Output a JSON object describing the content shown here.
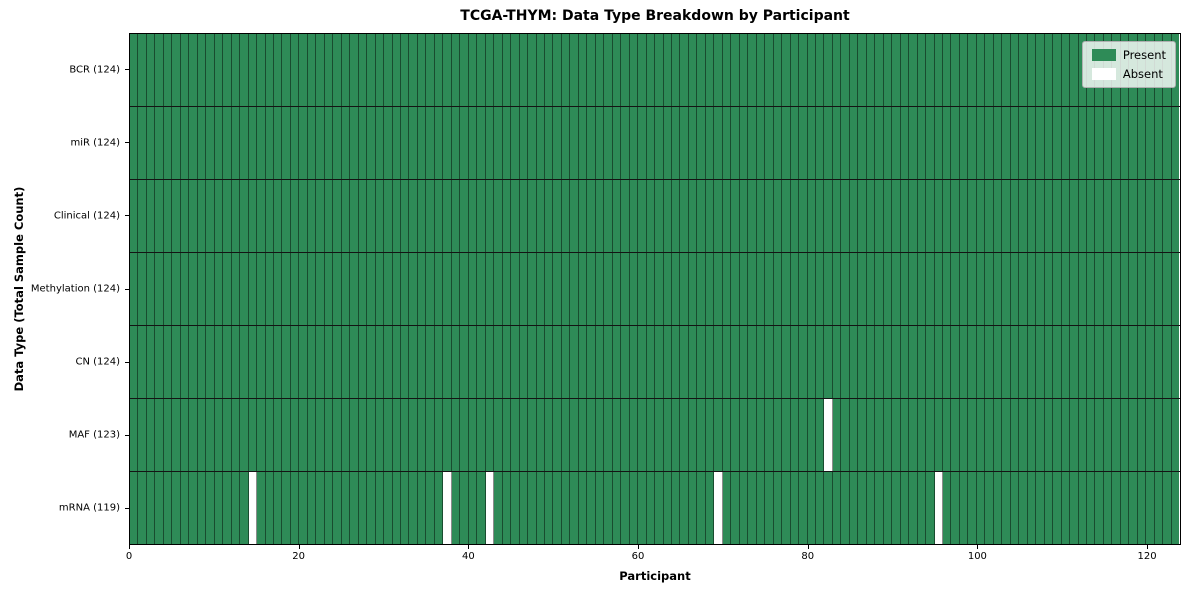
{
  "title": "TCGA-THYM: Data Type Breakdown by Participant",
  "xlabel": "Participant",
  "ylabel": "Data Type (Total Sample Count)",
  "legend": [
    {
      "label": "Present",
      "color": "#2e8b57"
    },
    {
      "label": "Absent",
      "color": "#ffffff"
    }
  ],
  "chart_data": {
    "type": "heatmap",
    "title": "TCGA-THYM: Data Type Breakdown by Participant",
    "xlabel": "Participant",
    "ylabel": "Data Type (Total Sample Count)",
    "xlim": [
      0,
      124
    ],
    "n_participants": 124,
    "x_tick_values": [
      0,
      20,
      40,
      60,
      80,
      100,
      120
    ],
    "x_tick_labels": [
      "0",
      "20",
      "40",
      "60",
      "80",
      "100",
      "120"
    ],
    "grid": false,
    "legend_position": "upper right",
    "present_color": "#2e8b57",
    "absent_color": "#ffffff",
    "cell_edge_color": "rgba(0,0,0,0.45)",
    "row_separator_color": "#141414",
    "rows": [
      {
        "label": "BCR (124)",
        "total": 124,
        "absent_indices": []
      },
      {
        "label": "miR (124)",
        "total": 124,
        "absent_indices": []
      },
      {
        "label": "Clinical (124)",
        "total": 124,
        "absent_indices": []
      },
      {
        "label": "Methylation (124)",
        "total": 124,
        "absent_indices": []
      },
      {
        "label": "CN (124)",
        "total": 124,
        "absent_indices": []
      },
      {
        "label": "MAF (123)",
        "total": 123,
        "absent_indices": [
          82
        ]
      },
      {
        "label": "mRNA (119)",
        "total": 119,
        "absent_indices": [
          14,
          37,
          42,
          69,
          95
        ]
      }
    ]
  }
}
